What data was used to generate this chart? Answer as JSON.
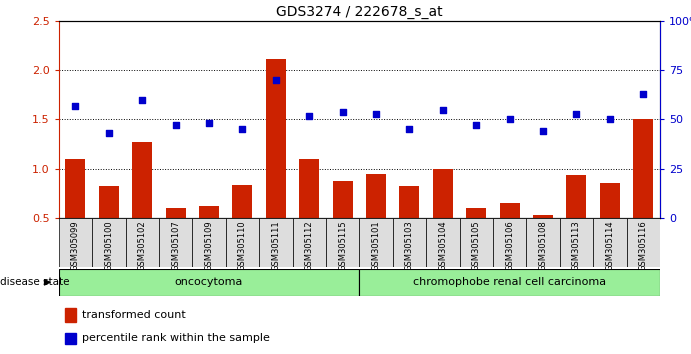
{
  "title": "GDS3274 / 222678_s_at",
  "samples": [
    "GSM305099",
    "GSM305100",
    "GSM305102",
    "GSM305107",
    "GSM305109",
    "GSM305110",
    "GSM305111",
    "GSM305112",
    "GSM305115",
    "GSM305101",
    "GSM305103",
    "GSM305104",
    "GSM305105",
    "GSM305106",
    "GSM305108",
    "GSM305113",
    "GSM305114",
    "GSM305116"
  ],
  "bar_values": [
    1.1,
    0.82,
    1.27,
    0.6,
    0.62,
    0.83,
    2.12,
    1.1,
    0.87,
    0.95,
    0.82,
    1.0,
    0.6,
    0.65,
    0.53,
    0.93,
    0.85,
    1.5
  ],
  "scatter_values": [
    57,
    43,
    60,
    47,
    48,
    45,
    70,
    52,
    54,
    53,
    45,
    55,
    47,
    50,
    44,
    53,
    50,
    63
  ],
  "ylim_left": [
    0.5,
    2.5
  ],
  "ylim_right": [
    0,
    100
  ],
  "yticks_left": [
    0.5,
    1.0,
    1.5,
    2.0,
    2.5
  ],
  "yticks_right": [
    0,
    25,
    50,
    75,
    100
  ],
  "bar_color": "#cc2200",
  "scatter_color": "#0000cc",
  "oncocytoma_count": 9,
  "chromophobe_count": 9,
  "oncocytoma_label": "oncocytoma",
  "chromophobe_label": "chromophobe renal cell carcinoma",
  "group_bg_color": "#99ee99",
  "disease_state_label": "disease state",
  "legend_bar_label": "transformed count",
  "legend_scatter_label": "percentile rank within the sample",
  "background_color": "#ffffff",
  "xtick_bg_color": "#dddddd",
  "dotted_levels": [
    1.0,
    1.5,
    2.0
  ]
}
